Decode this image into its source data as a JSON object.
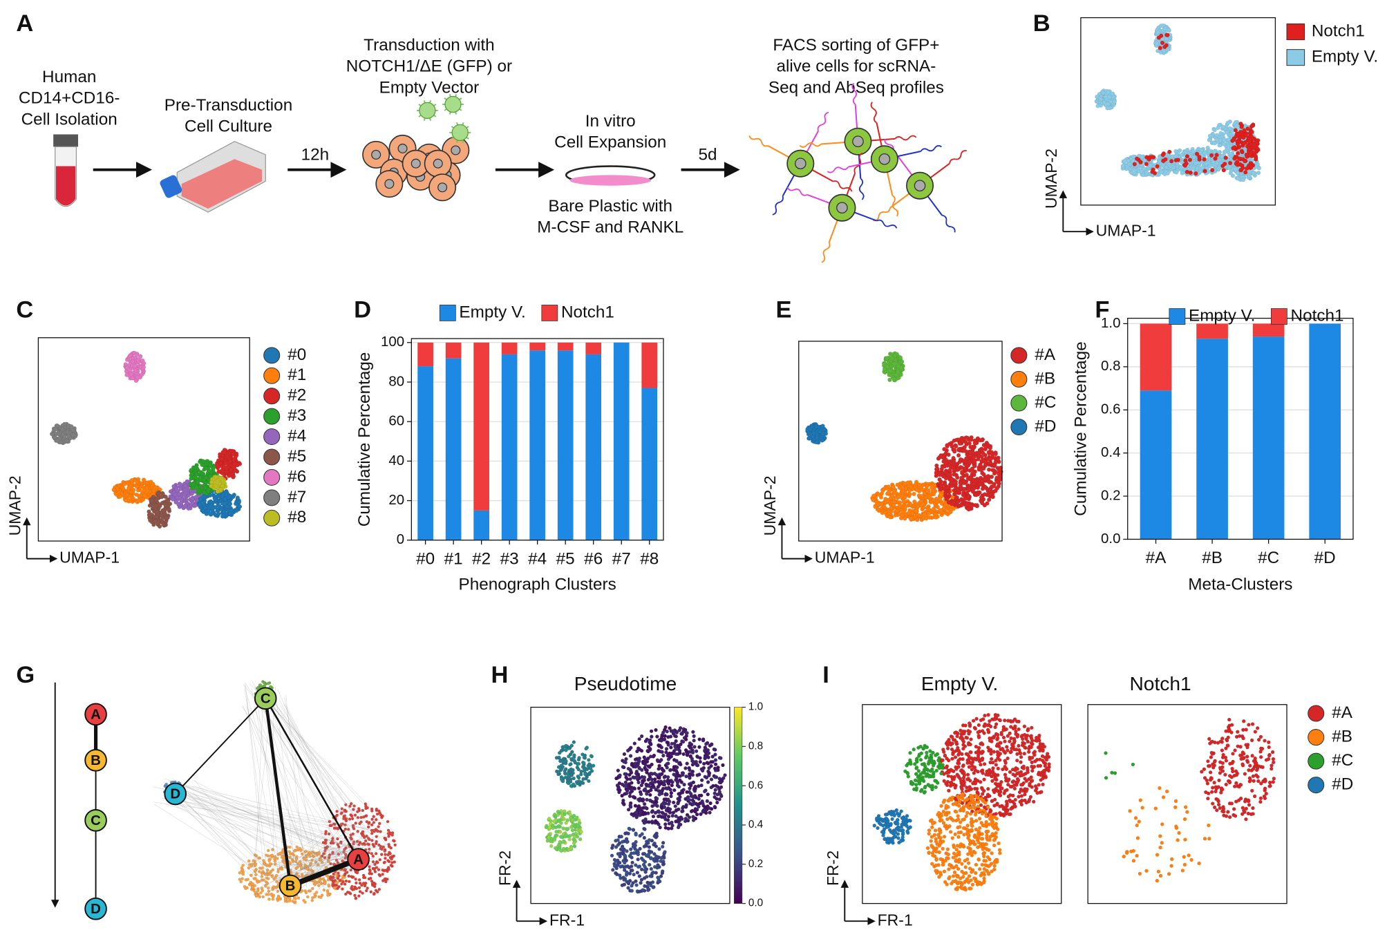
{
  "panel_labels": [
    "A",
    "B",
    "C",
    "D",
    "E",
    "F",
    "G",
    "H",
    "I"
  ],
  "workflow": {
    "steps": [
      {
        "lines": [
          "Human",
          "CD14+CD16-",
          "Cell Isolation"
        ]
      },
      {
        "lines": [
          "Pre-Transduction",
          "Cell Culture"
        ]
      },
      {
        "lines": [
          "Transduction with",
          "NOTCH1/ΔE (GFP) or",
          "Empty  Vector"
        ]
      },
      {
        "lines": [
          "In vitro",
          "Cell Expansion"
        ]
      },
      {
        "lines": [
          "Bare Plastic with",
          "M-CSF and RANKL"
        ]
      },
      {
        "lines": [
          "FACS sorting of GFP+",
          "alive cells for scRNA-",
          "Seq and AbSeq profiles"
        ]
      }
    ],
    "durations": [
      "12h",
      "5d"
    ]
  },
  "umap_b": {
    "legend": [
      {
        "name": "Notch1",
        "color": "#e0201e"
      },
      {
        "name": "Empty V.",
        "color": "#8ccbe6"
      }
    ],
    "x_label": "UMAP-1",
    "y_label": "UMAP-2"
  },
  "umap_c": {
    "legend": [
      {
        "name": "#0",
        "color": "#1f77b4"
      },
      {
        "name": "#1",
        "color": "#ff7f0e"
      },
      {
        "name": "#2",
        "color": "#d62728"
      },
      {
        "name": "#3",
        "color": "#2ca02c"
      },
      {
        "name": "#4",
        "color": "#9467bd"
      },
      {
        "name": "#5",
        "color": "#8c564b"
      },
      {
        "name": "#6",
        "color": "#e377c2"
      },
      {
        "name": "#7",
        "color": "#7f7f7f"
      },
      {
        "name": "#8",
        "color": "#bcbd22"
      }
    ],
    "x_label": "UMAP-1",
    "y_label": "UMAP-2"
  },
  "umap_e": {
    "legend": [
      {
        "name": "#A",
        "color": "#d62728"
      },
      {
        "name": "#B",
        "color": "#ff7f0e"
      },
      {
        "name": "#C",
        "color": "#5cb83a"
      },
      {
        "name": "#D",
        "color": "#1f77b4"
      }
    ],
    "x_label": "UMAP-1",
    "y_label": "UMAP-2"
  },
  "trajectory": {
    "nodes": [
      "A",
      "B",
      "C",
      "D"
    ]
  },
  "pseudotime": {
    "title": "Pseudotime",
    "colorbar_ticks": [
      "0.0",
      "0.2",
      "0.4",
      "0.6",
      "0.8",
      "1.0"
    ],
    "x_label": "FR-1",
    "y_label": "FR-2"
  },
  "split": {
    "titles": [
      "Empty V.",
      "Notch1"
    ],
    "legend": [
      {
        "name": "#A",
        "color": "#d62728"
      },
      {
        "name": "#B",
        "color": "#ff7f0e"
      },
      {
        "name": "#C",
        "color": "#2ca02c"
      },
      {
        "name": "#D",
        "color": "#1f77b4"
      }
    ],
    "x_label": "FR-1",
    "y_label": "FR-2"
  },
  "chart_data": [
    {
      "type": "stacked_bar",
      "x_label": "Phenograph Clusters",
      "y_label": "Cumulative Percentage",
      "categories": [
        "#0",
        "#1",
        "#2",
        "#3",
        "#4",
        "#5",
        "#6",
        "#7",
        "#8"
      ],
      "series": [
        {
          "name": "Empty V.",
          "color": "#1e88e5",
          "values": [
            88,
            92,
            15,
            94,
            96,
            96,
            94,
            100,
            77
          ]
        },
        {
          "name": "Notch1",
          "color": "#f03c3c",
          "values": [
            12,
            8,
            85,
            6,
            4,
            4,
            6,
            0,
            23
          ]
        }
      ],
      "ylim": [
        0,
        102
      ],
      "yticks": [
        0,
        20,
        40,
        60,
        80,
        100
      ],
      "grid": true
    },
    {
      "type": "stacked_bar",
      "x_label": "Meta-Clusters",
      "y_label": "Cumulative Percentage",
      "categories": [
        "#A",
        "#B",
        "#C",
        "#D"
      ],
      "series": [
        {
          "name": "Empty V.",
          "color": "#1e88e5",
          "values": [
            0.69,
            0.93,
            0.94,
            1.0
          ]
        },
        {
          "name": "Notch1",
          "color": "#f03c3c",
          "values": [
            0.31,
            0.07,
            0.06,
            0
          ]
        }
      ],
      "ylim": [
        0,
        1.025
      ],
      "yticks": [
        {
          "value": 0,
          "label": "0.0"
        },
        0.2,
        0.4,
        0.6,
        0.8,
        {
          "value": 1,
          "label": "1.0"
        }
      ],
      "grid": true
    }
  ]
}
